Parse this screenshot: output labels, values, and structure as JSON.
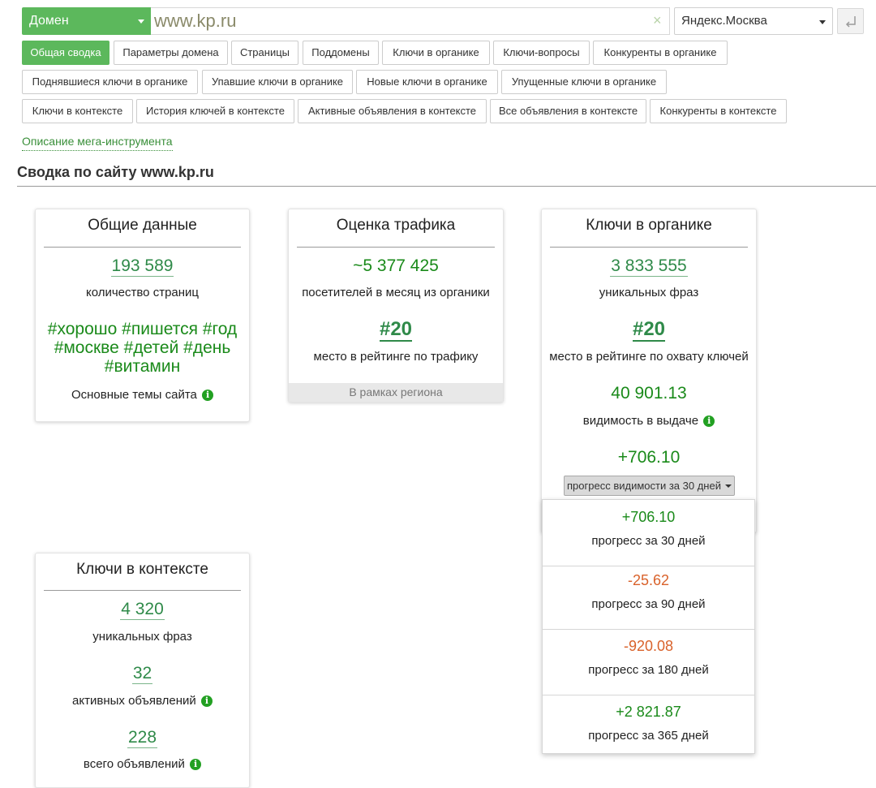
{
  "search": {
    "mode_label": "Домен",
    "query": "www.kp.ru",
    "clear_symbol": "×",
    "region": "Яндекс.Москва"
  },
  "tabs": [
    {
      "label": "Общая сводка",
      "active": true
    },
    {
      "label": "Параметры домена"
    },
    {
      "label": "Страницы"
    },
    {
      "label": "Поддомены"
    },
    {
      "label": "Ключи в органике"
    },
    {
      "label": "Ключи-вопросы"
    },
    {
      "label": "Конкуренты в органике"
    },
    {
      "label": "Поднявшиеся ключи в органике"
    },
    {
      "label": "Упавшие ключи в органике"
    },
    {
      "label": "Новые ключи в органике"
    },
    {
      "label": "Упущенные ключи в органике"
    },
    {
      "label": "Ключи в контексте"
    },
    {
      "label": "История ключей в контексте"
    },
    {
      "label": "Активные объявления в контексте"
    },
    {
      "label": "Все объявления в контексте"
    },
    {
      "label": "Конкуренты в контексте"
    }
  ],
  "mega_link": "Описание мега-инструмента",
  "page_title": "Сводка по сайту www.kp.ru",
  "cards": {
    "general": {
      "title": "Общие данные",
      "pages_count": "193 589",
      "pages_label": "количество страниц",
      "tags": "#хорошо #пишется #год #москве #детей #день #витамин",
      "topics_label": "Основные темы сайта"
    },
    "traffic": {
      "title": "Оценка трафика",
      "visitors": "~5 377 425",
      "visitors_label": "посетителей в месяц из органики",
      "rank": "#20",
      "rank_label": "место в рейтинге по трафику",
      "footer": "В рамках региона"
    },
    "organic": {
      "title": "Ключи в органике",
      "phrases": "3 833 555",
      "phrases_label": "уникальных фраз",
      "rank": "#20",
      "rank_label": "место в рейтинге по охвату ключей",
      "visibility": "40 901.13",
      "visibility_label": "видимость в выдаче",
      "progress": "+706.10",
      "progress_button": "прогресс видимости за 30 дней"
    },
    "context": {
      "title": "Ключи в контексте",
      "phrases": "4 320",
      "phrases_label": "уникальных фраз",
      "active_ads": "32",
      "active_ads_label": "активных объявлений",
      "all_ads": "228",
      "all_ads_label": "всего объявлений"
    }
  },
  "progress_dropdown": [
    {
      "value": "+706.10",
      "label": "прогресс за 30 дней",
      "color": "#1a8a1a"
    },
    {
      "value": "-25.62",
      "label": "прогресс за 90 дней",
      "color": "#d9622b"
    },
    {
      "value": "-920.08",
      "label": "прогресс за 180 дней",
      "color": "#d9622b"
    },
    {
      "value": "+2 821.87",
      "label": "прогресс за 365 дней",
      "color": "#1a8a1a"
    }
  ],
  "colors": {
    "accent": "#5cb85c",
    "positive": "#1a8a1a",
    "negative": "#d9622b",
    "link": "#2f8a49"
  },
  "icons": {
    "info": "info-circle-icon",
    "enter": "enter-arrow-icon"
  }
}
